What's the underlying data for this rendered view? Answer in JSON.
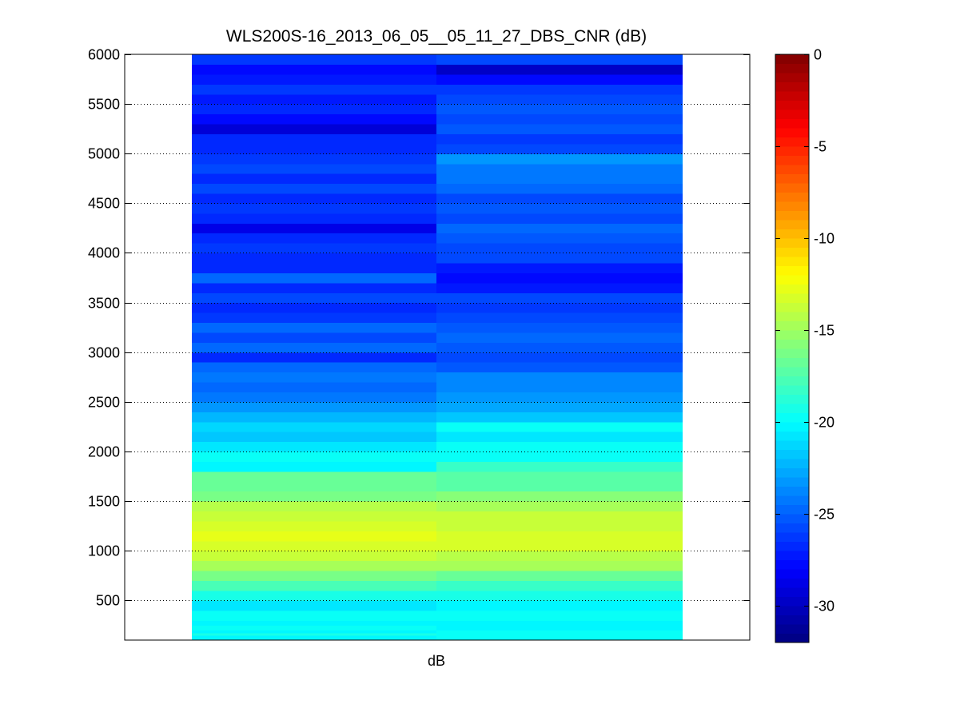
{
  "chart_data": {
    "type": "heatmap",
    "title": "WLS200S-16_2013_06_05__05_11_27_DBS_CNR (dB)",
    "xlabel": "dB",
    "ylabel": "",
    "ylim": [
      100,
      6000
    ],
    "yticks": [
      500,
      1000,
      1500,
      2000,
      2500,
      3000,
      3500,
      4000,
      4500,
      5000,
      5500,
      6000
    ],
    "grid": "y-dotted",
    "colormap": "jet",
    "colorbar": {
      "position": "right",
      "clim": [
        -32,
        0
      ],
      "ticks": [
        -30,
        -25,
        -20,
        -15,
        -10,
        -5,
        0
      ]
    },
    "columns": [
      {
        "rows": [
          [
            100,
            150,
            -20.5
          ],
          [
            150,
            175,
            -19.5
          ],
          [
            175,
            200,
            -20.5
          ],
          [
            200,
            250,
            -20.0
          ],
          [
            250,
            300,
            -20.5
          ],
          [
            300,
            400,
            -20.0
          ],
          [
            400,
            500,
            -21.0
          ],
          [
            500,
            600,
            -19.5
          ],
          [
            600,
            700,
            -18.0
          ],
          [
            700,
            800,
            -16.5
          ],
          [
            800,
            900,
            -15.0
          ],
          [
            900,
            1000,
            -14.0
          ],
          [
            1000,
            1100,
            -13.5
          ],
          [
            1100,
            1200,
            -13.0
          ],
          [
            1200,
            1300,
            -13.5
          ],
          [
            1300,
            1400,
            -14.0
          ],
          [
            1400,
            1500,
            -14.5
          ],
          [
            1500,
            1600,
            -16.5
          ],
          [
            1600,
            1700,
            -17.0
          ],
          [
            1700,
            1800,
            -17.0
          ],
          [
            1800,
            1900,
            -20.5
          ],
          [
            1900,
            2000,
            -20.0
          ],
          [
            2000,
            2100,
            -21.0
          ],
          [
            2100,
            2200,
            -22.0
          ],
          [
            2200,
            2300,
            -21.5
          ],
          [
            2300,
            2400,
            -22.5
          ],
          [
            2400,
            2500,
            -23.5
          ],
          [
            2500,
            2600,
            -24.5
          ],
          [
            2600,
            2700,
            -25.0
          ],
          [
            2700,
            2800,
            -24.5
          ],
          [
            2800,
            2900,
            -25.0
          ],
          [
            2900,
            3000,
            -27.0
          ],
          [
            3000,
            3100,
            -25.0
          ],
          [
            3100,
            3200,
            -26.0
          ],
          [
            3200,
            3300,
            -25.0
          ],
          [
            3300,
            3400,
            -26.5
          ],
          [
            3400,
            3500,
            -27.0
          ],
          [
            3500,
            3600,
            -26.0
          ],
          [
            3600,
            3700,
            -27.0
          ],
          [
            3700,
            3800,
            -25.0
          ],
          [
            3800,
            3900,
            -27.0
          ],
          [
            3900,
            4000,
            -27.0
          ],
          [
            4000,
            4100,
            -26.5
          ],
          [
            4100,
            4200,
            -27.0
          ],
          [
            4200,
            4300,
            -29.0
          ],
          [
            4300,
            4400,
            -27.0
          ],
          [
            4400,
            4500,
            -26.5
          ],
          [
            4500,
            4600,
            -27.0
          ],
          [
            4600,
            4700,
            -26.0
          ],
          [
            4700,
            4800,
            -27.0
          ],
          [
            4800,
            4900,
            -26.0
          ],
          [
            4900,
            5000,
            -26.5
          ],
          [
            5000,
            5100,
            -27.0
          ],
          [
            5100,
            5200,
            -27.0
          ],
          [
            5200,
            5300,
            -29.5
          ],
          [
            5300,
            5400,
            -28.0
          ],
          [
            5400,
            5500,
            -27.0
          ],
          [
            5500,
            5600,
            -27.5
          ],
          [
            5600,
            5700,
            -26.5
          ],
          [
            5700,
            5800,
            -27.5
          ],
          [
            5800,
            5900,
            -28.0
          ],
          [
            5900,
            6000,
            -26.5
          ]
        ]
      },
      {
        "rows": [
          [
            100,
            200,
            -20.0
          ],
          [
            200,
            300,
            -20.5
          ],
          [
            300,
            400,
            -20.0
          ],
          [
            400,
            500,
            -20.5
          ],
          [
            500,
            600,
            -19.5
          ],
          [
            600,
            700,
            -18.5
          ],
          [
            700,
            800,
            -17.0
          ],
          [
            800,
            900,
            -15.0
          ],
          [
            900,
            1000,
            -14.5
          ],
          [
            1000,
            1100,
            -13.5
          ],
          [
            1100,
            1200,
            -13.5
          ],
          [
            1200,
            1300,
            -14.0
          ],
          [
            1300,
            1400,
            -14.0
          ],
          [
            1400,
            1500,
            -15.0
          ],
          [
            1500,
            1600,
            -16.0
          ],
          [
            1600,
            1700,
            -17.5
          ],
          [
            1700,
            1800,
            -17.5
          ],
          [
            1800,
            1900,
            -18.5
          ],
          [
            1900,
            2000,
            -20.0
          ],
          [
            2000,
            2100,
            -20.0
          ],
          [
            2100,
            2200,
            -21.0
          ],
          [
            2200,
            2300,
            -20.0
          ],
          [
            2300,
            2400,
            -22.0
          ],
          [
            2400,
            2500,
            -23.0
          ],
          [
            2500,
            2600,
            -23.5
          ],
          [
            2600,
            2700,
            -24.0
          ],
          [
            2700,
            2800,
            -24.0
          ],
          [
            2800,
            2900,
            -25.5
          ],
          [
            2900,
            3000,
            -26.0
          ],
          [
            3000,
            3100,
            -25.5
          ],
          [
            3100,
            3200,
            -25.0
          ],
          [
            3200,
            3300,
            -25.5
          ],
          [
            3300,
            3400,
            -26.0
          ],
          [
            3400,
            3500,
            -26.5
          ],
          [
            3500,
            3600,
            -26.0
          ],
          [
            3600,
            3700,
            -27.5
          ],
          [
            3700,
            3800,
            -28.0
          ],
          [
            3800,
            3900,
            -27.5
          ],
          [
            3900,
            4000,
            -26.0
          ],
          [
            4000,
            4100,
            -26.0
          ],
          [
            4100,
            4200,
            -25.5
          ],
          [
            4200,
            4300,
            -25.0
          ],
          [
            4300,
            4400,
            -26.0
          ],
          [
            4400,
            4500,
            -25.5
          ],
          [
            4500,
            4600,
            -26.0
          ],
          [
            4600,
            4700,
            -25.0
          ],
          [
            4700,
            4800,
            -24.5
          ],
          [
            4800,
            4900,
            -24.5
          ],
          [
            4900,
            5000,
            -23.5
          ],
          [
            5000,
            5100,
            -26.0
          ],
          [
            5100,
            5200,
            -26.5
          ],
          [
            5200,
            5300,
            -25.5
          ],
          [
            5300,
            5400,
            -26.0
          ],
          [
            5400,
            5500,
            -25.5
          ],
          [
            5500,
            5600,
            -26.0
          ],
          [
            5600,
            5700,
            -26.5
          ],
          [
            5700,
            5800,
            -28.0
          ],
          [
            5800,
            5900,
            -30.0
          ],
          [
            5900,
            6000,
            -26.0
          ]
        ]
      }
    ]
  }
}
